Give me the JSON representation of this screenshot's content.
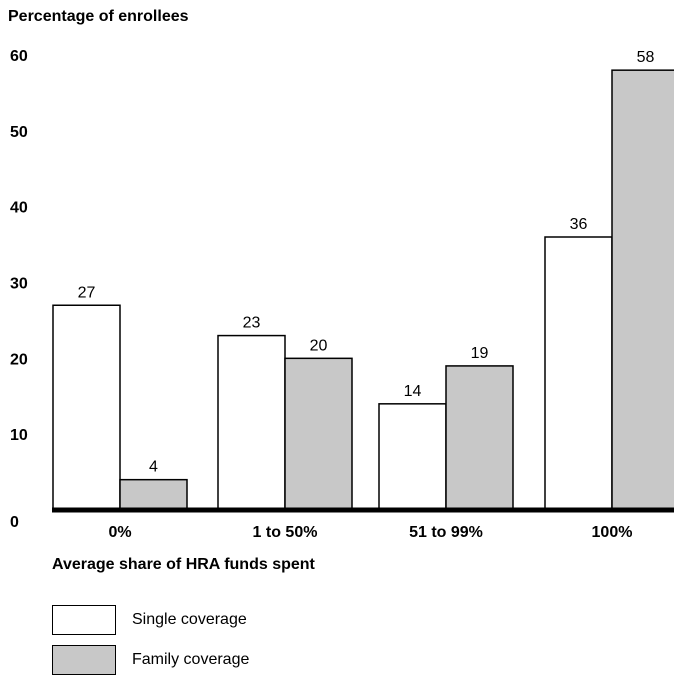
{
  "chart_data": {
    "type": "bar",
    "ylabel": "Percentage of enrollees",
    "xlabel": "Average share of HRA funds spent",
    "categories": [
      "0%",
      "1 to 50%",
      "51 to 99%",
      "100%"
    ],
    "yticks": [
      0,
      10,
      20,
      30,
      40,
      50,
      60
    ],
    "ylim": [
      0,
      60
    ],
    "grid": false,
    "legend": "bottom-left",
    "series": [
      {
        "name": "Single coverage",
        "values": [
          27,
          23,
          14,
          36
        ],
        "color": "#ffffff"
      },
      {
        "name": "Family coverage",
        "values": [
          4,
          20,
          19,
          58
        ],
        "color": "#c8c8c8"
      }
    ]
  }
}
